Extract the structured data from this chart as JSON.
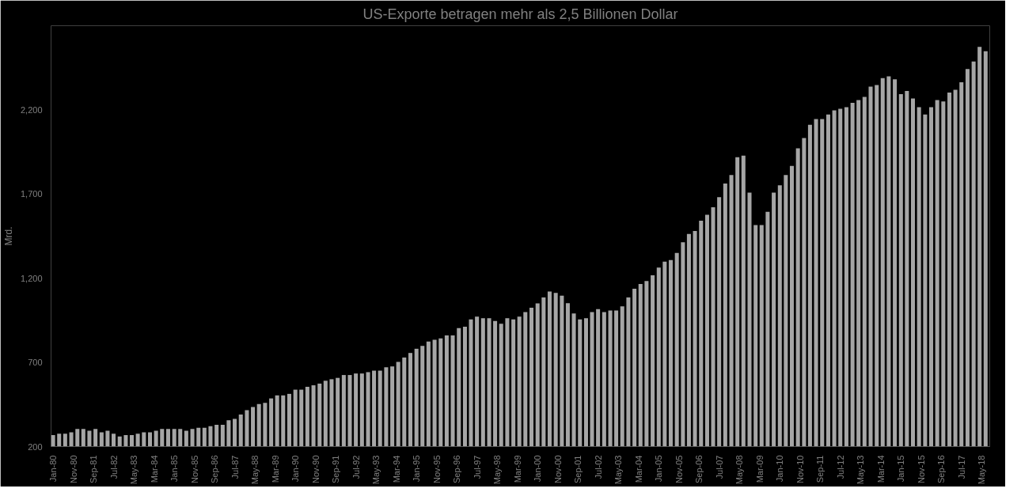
{
  "chart_data": {
    "type": "bar",
    "title": "US-Exporte betragen mehr als 2,5 Billionen Dollar",
    "ylabel": "Mrd.",
    "x": [
      "1980-01",
      "1980-04",
      "1980-07",
      "1980-10",
      "1981-01",
      "1981-04",
      "1981-07",
      "1981-10",
      "1982-01",
      "1982-04",
      "1982-07",
      "1982-10",
      "1983-01",
      "1983-04",
      "1983-07",
      "1983-10",
      "1984-01",
      "1984-04",
      "1984-07",
      "1984-10",
      "1985-01",
      "1985-04",
      "1985-07",
      "1985-10",
      "1986-01",
      "1986-04",
      "1986-07",
      "1986-10",
      "1987-01",
      "1987-04",
      "1987-07",
      "1987-10",
      "1988-01",
      "1988-04",
      "1988-07",
      "1988-10",
      "1989-01",
      "1989-04",
      "1989-07",
      "1989-10",
      "1990-01",
      "1990-04",
      "1990-07",
      "1990-10",
      "1991-01",
      "1991-04",
      "1991-07",
      "1991-10",
      "1992-01",
      "1992-04",
      "1992-07",
      "1992-10",
      "1993-01",
      "1993-04",
      "1993-07",
      "1993-10",
      "1994-01",
      "1994-04",
      "1994-07",
      "1994-10",
      "1995-01",
      "1995-04",
      "1995-07",
      "1995-10",
      "1996-01",
      "1996-04",
      "1996-07",
      "1996-10",
      "1997-01",
      "1997-04",
      "1997-07",
      "1997-10",
      "1998-01",
      "1998-04",
      "1998-07",
      "1998-10",
      "1999-01",
      "1999-04",
      "1999-07",
      "1999-10",
      "2000-01",
      "2000-04",
      "2000-07",
      "2000-10",
      "2001-01",
      "2001-04",
      "2001-07",
      "2001-10",
      "2002-01",
      "2002-04",
      "2002-07",
      "2002-10",
      "2003-01",
      "2003-04",
      "2003-07",
      "2003-10",
      "2004-01",
      "2004-04",
      "2004-07",
      "2004-10",
      "2005-01",
      "2005-04",
      "2005-07",
      "2005-10",
      "2006-01",
      "2006-04",
      "2006-07",
      "2006-10",
      "2007-01",
      "2007-04",
      "2007-07",
      "2007-10",
      "2008-01",
      "2008-04",
      "2008-07",
      "2008-10",
      "2009-01",
      "2009-04",
      "2009-07",
      "2009-10",
      "2010-01",
      "2010-04",
      "2010-07",
      "2010-10",
      "2011-01",
      "2011-04",
      "2011-07",
      "2011-10",
      "2012-01",
      "2012-04",
      "2012-07",
      "2012-10",
      "2013-01",
      "2013-04",
      "2013-07",
      "2013-10",
      "2014-01",
      "2014-04",
      "2014-07",
      "2014-10",
      "2015-01",
      "2015-04",
      "2015-07",
      "2015-10",
      "2016-01",
      "2016-04",
      "2016-07",
      "2016-10",
      "2017-01",
      "2017-04",
      "2017-07",
      "2017-10",
      "2018-01",
      "2018-04",
      "2018-07"
    ],
    "values": [
      268,
      276,
      276,
      285,
      304,
      304,
      294,
      304,
      285,
      294,
      276,
      260,
      268,
      268,
      276,
      285,
      285,
      294,
      304,
      304,
      304,
      304,
      294,
      304,
      312,
      312,
      321,
      329,
      329,
      356,
      365,
      390,
      416,
      435,
      452,
      460,
      486,
      504,
      504,
      513,
      538,
      538,
      555,
      564,
      574,
      591,
      600,
      608,
      625,
      625,
      634,
      634,
      642,
      651,
      651,
      671,
      676,
      703,
      729,
      756,
      781,
      798,
      824,
      834,
      843,
      860,
      860,
      904,
      912,
      955,
      972,
      963,
      963,
      946,
      929,
      963,
      955,
      972,
      999,
      1025,
      1050,
      1086,
      1121,
      1113,
      1096,
      1052,
      991,
      955,
      963,
      999,
      1016,
      999,
      1008,
      1008,
      1033,
      1086,
      1138,
      1166,
      1183,
      1217,
      1263,
      1298,
      1308,
      1350,
      1413,
      1463,
      1481,
      1542,
      1577,
      1621,
      1682,
      1762,
      1813,
      1919,
      1928,
      1708,
      1516,
      1516,
      1594,
      1708,
      1752,
      1813,
      1867,
      1972,
      2033,
      2111,
      2146,
      2146,
      2172,
      2197,
      2207,
      2216,
      2242,
      2258,
      2277,
      2338,
      2347,
      2389,
      2399,
      2382,
      2293,
      2312,
      2268,
      2216,
      2172,
      2216,
      2258,
      2250,
      2303,
      2319,
      2364,
      2443,
      2487,
      2574,
      2548
    ],
    "color": "#a6a6a6",
    "xlim": [
      "1979-12",
      "2018-09"
    ],
    "xticks": [
      {
        "value": "1980-01",
        "label": "Jan-80"
      },
      {
        "value": "1980-11",
        "label": "Nov-80"
      },
      {
        "value": "1981-09",
        "label": "Sep-81"
      },
      {
        "value": "1982-07",
        "label": "Jul-82"
      },
      {
        "value": "1983-05",
        "label": "May-83"
      },
      {
        "value": "1984-03",
        "label": "Mar-84"
      },
      {
        "value": "1985-01",
        "label": "Jan-85"
      },
      {
        "value": "1985-11",
        "label": "Nov-85"
      },
      {
        "value": "1986-09",
        "label": "Sep-86"
      },
      {
        "value": "1987-07",
        "label": "Jul-87"
      },
      {
        "value": "1988-05",
        "label": "May-88"
      },
      {
        "value": "1989-03",
        "label": "Mar-89"
      },
      {
        "value": "1990-01",
        "label": "Jan-90"
      },
      {
        "value": "1990-11",
        "label": "Nov-90"
      },
      {
        "value": "1991-09",
        "label": "Sep-91"
      },
      {
        "value": "1992-07",
        "label": "Jul-92"
      },
      {
        "value": "1993-05",
        "label": "May-93"
      },
      {
        "value": "1994-03",
        "label": "Mar-94"
      },
      {
        "value": "1995-01",
        "label": "Jan-95"
      },
      {
        "value": "1995-11",
        "label": "Nov-95"
      },
      {
        "value": "1996-09",
        "label": "Sep-96"
      },
      {
        "value": "1997-07",
        "label": "Jul-97"
      },
      {
        "value": "1998-05",
        "label": "May-98"
      },
      {
        "value": "1999-03",
        "label": "Mar-99"
      },
      {
        "value": "2000-01",
        "label": "Jan-00"
      },
      {
        "value": "2000-11",
        "label": "Nov-00"
      },
      {
        "value": "2001-09",
        "label": "Sep-01"
      },
      {
        "value": "2002-07",
        "label": "Jul-02"
      },
      {
        "value": "2003-05",
        "label": "May-03"
      },
      {
        "value": "2004-03",
        "label": "Mar-04"
      },
      {
        "value": "2005-01",
        "label": "Jan-05"
      },
      {
        "value": "2005-11",
        "label": "Nov-05"
      },
      {
        "value": "2006-09",
        "label": "Sep-06"
      },
      {
        "value": "2007-07",
        "label": "Jul-07"
      },
      {
        "value": "2008-05",
        "label": "May-08"
      },
      {
        "value": "2009-03",
        "label": "Mar-09"
      },
      {
        "value": "2010-01",
        "label": "Jan-10"
      },
      {
        "value": "2010-11",
        "label": "Nov-10"
      },
      {
        "value": "2011-09",
        "label": "Sep-11"
      },
      {
        "value": "2012-07",
        "label": "Jul-12"
      },
      {
        "value": "2013-05",
        "label": "May-13"
      },
      {
        "value": "2014-03",
        "label": "Mar-14"
      },
      {
        "value": "2015-01",
        "label": "Jan-15"
      },
      {
        "value": "2015-11",
        "label": "Nov-15"
      },
      {
        "value": "2016-09",
        "label": "Sep-16"
      },
      {
        "value": "2017-07",
        "label": "Jul-17"
      },
      {
        "value": "2018-05",
        "label": "May-18"
      }
    ],
    "ylim": [
      200,
      2700
    ],
    "yticks": [
      200,
      700,
      {
        "value": 1200,
        "label": "1,200"
      },
      {
        "value": 1700,
        "label": "1,700"
      },
      {
        "value": 2200,
        "label": "2,200"
      }
    ],
    "grid": false
  }
}
